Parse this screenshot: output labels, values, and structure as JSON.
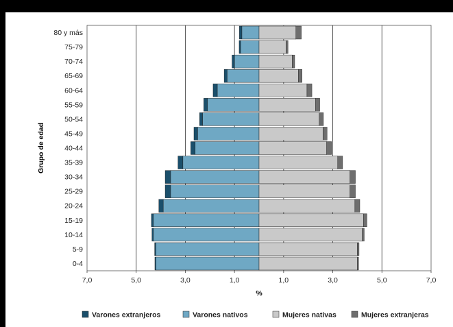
{
  "chart_data": {
    "type": "bar",
    "orientation": "horizontal-pyramid",
    "categories": [
      "0-4",
      "5-9",
      "10-14",
      "15-19",
      "20-24",
      "25-29",
      "30-34",
      "35-39",
      "40-44",
      "45-49",
      "50-54",
      "55-59",
      "60-64",
      "65-69",
      "70-74",
      "75-79",
      "80 y más"
    ],
    "series": [
      {
        "name": "Varones extranjeros",
        "side": "left",
        "color": "#1b4f6b",
        "values": [
          0.04,
          0.05,
          0.06,
          0.08,
          0.18,
          0.22,
          0.22,
          0.2,
          0.18,
          0.15,
          0.12,
          0.15,
          0.17,
          0.12,
          0.1,
          0.06,
          0.1
        ]
      },
      {
        "name": "Varones nativos",
        "side": "left",
        "color": "#6fa8c4",
        "values": [
          4.2,
          4.2,
          4.3,
          4.3,
          3.9,
          3.6,
          3.6,
          3.1,
          2.6,
          2.5,
          2.3,
          2.1,
          1.7,
          1.3,
          1.0,
          0.75,
          0.7
        ]
      },
      {
        "name": "Mujeres nativas",
        "side": "right",
        "color": "#c9c9c9",
        "values": [
          4.0,
          4.0,
          4.2,
          4.25,
          3.9,
          3.7,
          3.7,
          3.2,
          2.75,
          2.6,
          2.45,
          2.3,
          1.95,
          1.6,
          1.35,
          1.1,
          1.5
        ]
      },
      {
        "name": "Mujeres extranjeras",
        "side": "right",
        "color": "#6e6e6e",
        "values": [
          0.05,
          0.07,
          0.08,
          0.14,
          0.2,
          0.22,
          0.22,
          0.2,
          0.2,
          0.17,
          0.17,
          0.17,
          0.2,
          0.15,
          0.1,
          0.08,
          0.22
        ]
      }
    ],
    "xticks": [
      "7,0",
      "5,0",
      "3,0",
      "1,0",
      "1,0",
      "3,0",
      "5,0",
      "7,0"
    ],
    "xtick_values": [
      -7,
      -5,
      -3,
      -1,
      1,
      3,
      5,
      7
    ],
    "xlim": [
      -7,
      7
    ],
    "xlabel": "%",
    "ylabel": "Grupo de edad",
    "grid": "vertical",
    "legend_position": "bottom"
  }
}
